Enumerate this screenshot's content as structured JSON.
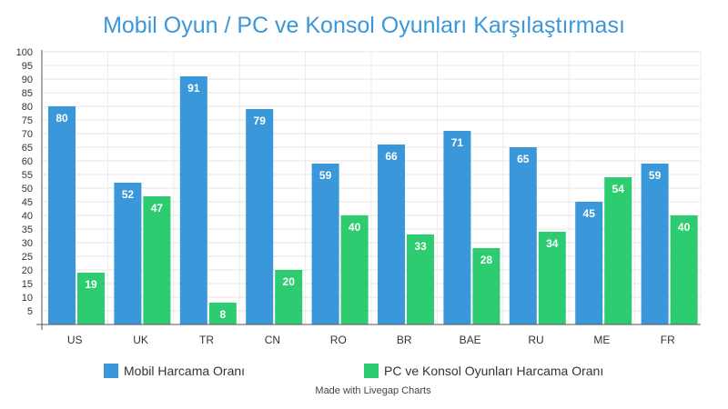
{
  "chart_data": {
    "type": "bar",
    "title": "Mobil Oyun / PC ve Konsol Oyunları Karşılaştırması",
    "categories": [
      "US",
      "UK",
      "TR",
      "CN",
      "RO",
      "BR",
      "BAE",
      "RU",
      "ME",
      "FR"
    ],
    "series": [
      {
        "name": "Mobil Harcama Oranı",
        "values": [
          80,
          52,
          91,
          79,
          59,
          66,
          71,
          65,
          45,
          59
        ],
        "color": "#3a97d9"
      },
      {
        "name": "PC ve Konsol Oyunları Harcama Oranı",
        "values": [
          19,
          47,
          8,
          20,
          40,
          33,
          28,
          34,
          54,
          40
        ],
        "color": "#2ecc71"
      }
    ],
    "ylim": [
      0,
      100
    ],
    "yticks": [
      5,
      10,
      15,
      20,
      25,
      30,
      35,
      40,
      45,
      50,
      55,
      60,
      65,
      70,
      75,
      80,
      85,
      90,
      95,
      100
    ],
    "grid": true,
    "legend_position": "bottom",
    "title_color": "#3a97d9"
  },
  "credit": "Made with Livegap Charts"
}
